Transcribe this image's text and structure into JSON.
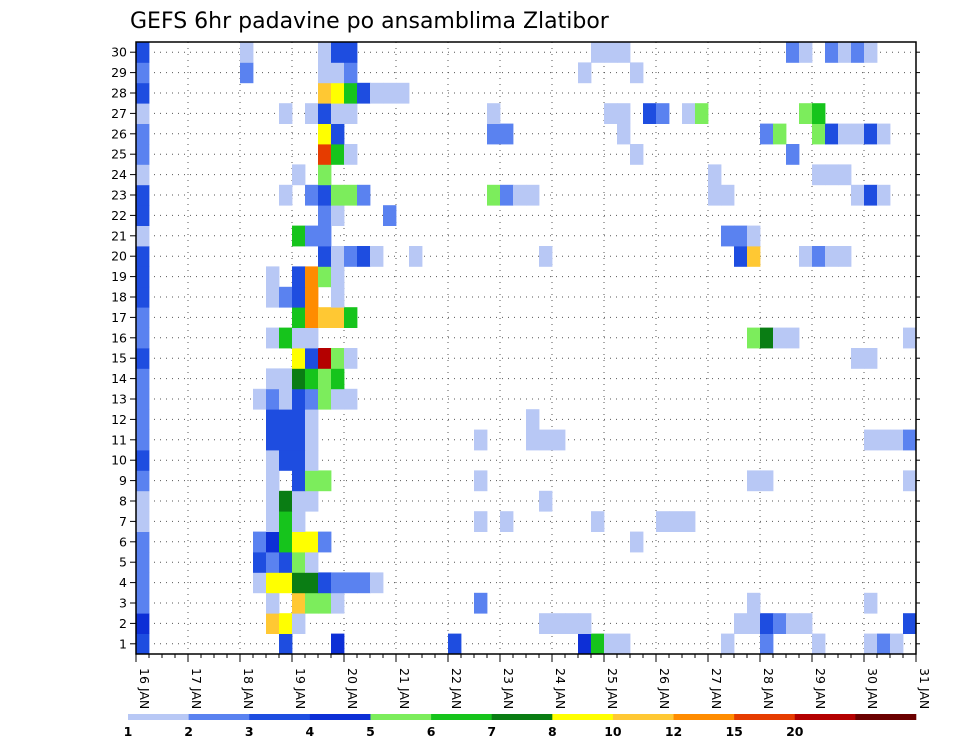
{
  "chart_data": {
    "type": "heatmap",
    "title": "GEFS 6hr padavine po ansamblima Zlatibor",
    "xlabel": "",
    "ylabel": "",
    "x_tick_labels": [
      "16 JAN",
      "17 JAN",
      "18 JAN",
      "19 JAN",
      "20 JAN",
      "21 JAN",
      "22 JAN",
      "23 JAN",
      "24 JAN",
      "25 JAN",
      "26 JAN",
      "27 JAN",
      "28 JAN",
      "29 JAN",
      "30 JAN",
      "31 JAN"
    ],
    "y_tick_labels": [
      1,
      2,
      3,
      4,
      5,
      6,
      7,
      8,
      9,
      10,
      11,
      12,
      13,
      14,
      15,
      16,
      17,
      18,
      19,
      20,
      21,
      22,
      23,
      24,
      25,
      26,
      27,
      28,
      29,
      30
    ],
    "xlim": [
      0,
      60
    ],
    "ylim": [
      0.5,
      30.5
    ],
    "time_step_hours": 6,
    "grid": true,
    "colorbar": {
      "labels": [
        "1",
        "2",
        "3",
        "4",
        "5",
        "6",
        "7",
        "8",
        "10",
        "12",
        "15",
        "20"
      ],
      "colors": [
        "#b8c8f5",
        "#5a82f0",
        "#1e4de0",
        "#0d2fd6",
        "#7ced5c",
        "#16c41c",
        "#0a7d14",
        "#ffff00",
        "#ffc833",
        "#ff8c00",
        "#e63c00",
        "#b40000",
        "#6b0000"
      ]
    },
    "values_note": "level index per cell: 1..13 = colorbar segment",
    "cells": [
      [
        1,
        0,
        3
      ],
      [
        1,
        11,
        3
      ],
      [
        1,
        15,
        4
      ],
      [
        1,
        24,
        3
      ],
      [
        1,
        34,
        4
      ],
      [
        1,
        35,
        6
      ],
      [
        1,
        36,
        1
      ],
      [
        1,
        37,
        1
      ],
      [
        1,
        45,
        1
      ],
      [
        1,
        48,
        2
      ],
      [
        1,
        52,
        1
      ],
      [
        1,
        56,
        1
      ],
      [
        1,
        57,
        2
      ],
      [
        1,
        58,
        1
      ],
      [
        2,
        0,
        4
      ],
      [
        2,
        10,
        9
      ],
      [
        2,
        11,
        8
      ],
      [
        2,
        12,
        1
      ],
      [
        2,
        31,
        1
      ],
      [
        2,
        32,
        1
      ],
      [
        2,
        33,
        1
      ],
      [
        2,
        34,
        1
      ],
      [
        2,
        46,
        1
      ],
      [
        2,
        47,
        1
      ],
      [
        2,
        48,
        3
      ],
      [
        2,
        49,
        2
      ],
      [
        2,
        50,
        1
      ],
      [
        2,
        51,
        1
      ],
      [
        2,
        59,
        3
      ],
      [
        3,
        0,
        2
      ],
      [
        3,
        10,
        1
      ],
      [
        3,
        12,
        9
      ],
      [
        3,
        13,
        5
      ],
      [
        3,
        14,
        5
      ],
      [
        3,
        15,
        1
      ],
      [
        3,
        26,
        2
      ],
      [
        3,
        47,
        1
      ],
      [
        3,
        56,
        1
      ],
      [
        4,
        0,
        2
      ],
      [
        4,
        9,
        1
      ],
      [
        4,
        10,
        8
      ],
      [
        4,
        11,
        8
      ],
      [
        4,
        12,
        7
      ],
      [
        4,
        13,
        7
      ],
      [
        4,
        14,
        3
      ],
      [
        4,
        15,
        2
      ],
      [
        4,
        16,
        2
      ],
      [
        4,
        17,
        2
      ],
      [
        4,
        18,
        1
      ],
      [
        5,
        0,
        2
      ],
      [
        5,
        9,
        3
      ],
      [
        5,
        10,
        2
      ],
      [
        5,
        11,
        3
      ],
      [
        5,
        12,
        5
      ],
      [
        5,
        13,
        1
      ],
      [
        6,
        0,
        2
      ],
      [
        6,
        9,
        2
      ],
      [
        6,
        10,
        4
      ],
      [
        6,
        11,
        6
      ],
      [
        6,
        12,
        8
      ],
      [
        6,
        13,
        8
      ],
      [
        6,
        14,
        2
      ],
      [
        6,
        38,
        1
      ],
      [
        7,
        0,
        1
      ],
      [
        7,
        10,
        1
      ],
      [
        7,
        11,
        6
      ],
      [
        7,
        12,
        1
      ],
      [
        7,
        26,
        1
      ],
      [
        7,
        28,
        1
      ],
      [
        7,
        35,
        1
      ],
      [
        7,
        40,
        1
      ],
      [
        7,
        41,
        1
      ],
      [
        7,
        42,
        1
      ],
      [
        8,
        0,
        1
      ],
      [
        8,
        10,
        1
      ],
      [
        8,
        11,
        7
      ],
      [
        8,
        12,
        1
      ],
      [
        8,
        13,
        1
      ],
      [
        8,
        31,
        1
      ],
      [
        9,
        0,
        2
      ],
      [
        9,
        10,
        1
      ],
      [
        9,
        12,
        3
      ],
      [
        9,
        13,
        5
      ],
      [
        9,
        14,
        5
      ],
      [
        9,
        26,
        1
      ],
      [
        9,
        47,
        1
      ],
      [
        9,
        48,
        1
      ],
      [
        9,
        59,
        1
      ],
      [
        10,
        0,
        3
      ],
      [
        10,
        10,
        1
      ],
      [
        10,
        11,
        3
      ],
      [
        10,
        12,
        3
      ],
      [
        10,
        13,
        1
      ],
      [
        11,
        0,
        2
      ],
      [
        11,
        10,
        3
      ],
      [
        11,
        11,
        3
      ],
      [
        11,
        12,
        3
      ],
      [
        11,
        13,
        1
      ],
      [
        11,
        26,
        1
      ],
      [
        11,
        30,
        1
      ],
      [
        11,
        31,
        1
      ],
      [
        11,
        32,
        1
      ],
      [
        11,
        56,
        1
      ],
      [
        11,
        57,
        1
      ],
      [
        11,
        58,
        1
      ],
      [
        11,
        59,
        2
      ],
      [
        12,
        0,
        2
      ],
      [
        12,
        10,
        3
      ],
      [
        12,
        11,
        3
      ],
      [
        12,
        12,
        3
      ],
      [
        12,
        13,
        1
      ],
      [
        12,
        30,
        1
      ],
      [
        13,
        0,
        2
      ],
      [
        13,
        9,
        1
      ],
      [
        13,
        10,
        2
      ],
      [
        13,
        11,
        1
      ],
      [
        13,
        12,
        3
      ],
      [
        13,
        13,
        2
      ],
      [
        13,
        14,
        5
      ],
      [
        13,
        15,
        1
      ],
      [
        13,
        16,
        1
      ],
      [
        14,
        0,
        2
      ],
      [
        14,
        10,
        1
      ],
      [
        14,
        11,
        1
      ],
      [
        14,
        12,
        7
      ],
      [
        14,
        13,
        6
      ],
      [
        14,
        14,
        5
      ],
      [
        14,
        15,
        6
      ],
      [
        15,
        0,
        3
      ],
      [
        15,
        12,
        8
      ],
      [
        15,
        13,
        3
      ],
      [
        15,
        14,
        12
      ],
      [
        15,
        15,
        5
      ],
      [
        15,
        16,
        1
      ],
      [
        15,
        55,
        1
      ],
      [
        15,
        56,
        1
      ],
      [
        16,
        0,
        2
      ],
      [
        16,
        10,
        1
      ],
      [
        16,
        11,
        6
      ],
      [
        16,
        12,
        1
      ],
      [
        16,
        13,
        1
      ],
      [
        16,
        47,
        5
      ],
      [
        16,
        48,
        7
      ],
      [
        16,
        49,
        1
      ],
      [
        16,
        50,
        1
      ],
      [
        16,
        59,
        1
      ],
      [
        17,
        0,
        2
      ],
      [
        17,
        12,
        6
      ],
      [
        17,
        13,
        10
      ],
      [
        17,
        14,
        9
      ],
      [
        17,
        15,
        9
      ],
      [
        17,
        16,
        6
      ],
      [
        18,
        0,
        3
      ],
      [
        18,
        10,
        1
      ],
      [
        18,
        11,
        2
      ],
      [
        18,
        12,
        3
      ],
      [
        18,
        13,
        10
      ],
      [
        18,
        15,
        1
      ],
      [
        19,
        0,
        3
      ],
      [
        19,
        10,
        1
      ],
      [
        19,
        12,
        3
      ],
      [
        19,
        13,
        10
      ],
      [
        19,
        14,
        5
      ],
      [
        19,
        15,
        1
      ],
      [
        20,
        0,
        3
      ],
      [
        20,
        14,
        3
      ],
      [
        20,
        15,
        1
      ],
      [
        20,
        16,
        2
      ],
      [
        20,
        17,
        3
      ],
      [
        20,
        18,
        1
      ],
      [
        20,
        21,
        1
      ],
      [
        20,
        31,
        1
      ],
      [
        20,
        46,
        3
      ],
      [
        20,
        47,
        9
      ],
      [
        20,
        51,
        1
      ],
      [
        20,
        52,
        2
      ],
      [
        20,
        53,
        1
      ],
      [
        20,
        54,
        1
      ],
      [
        21,
        0,
        1
      ],
      [
        21,
        12,
        6
      ],
      [
        21,
        13,
        2
      ],
      [
        21,
        14,
        2
      ],
      [
        21,
        45,
        2
      ],
      [
        21,
        46,
        2
      ],
      [
        21,
        47,
        1
      ],
      [
        22,
        0,
        3
      ],
      [
        22,
        14,
        2
      ],
      [
        22,
        15,
        1
      ],
      [
        22,
        19,
        2
      ],
      [
        23,
        0,
        3
      ],
      [
        23,
        11,
        1
      ],
      [
        23,
        13,
        2
      ],
      [
        23,
        14,
        3
      ],
      [
        23,
        15,
        5
      ],
      [
        23,
        16,
        5
      ],
      [
        23,
        17,
        2
      ],
      [
        23,
        27,
        5
      ],
      [
        23,
        28,
        2
      ],
      [
        23,
        29,
        1
      ],
      [
        23,
        30,
        1
      ],
      [
        23,
        44,
        1
      ],
      [
        23,
        45,
        1
      ],
      [
        23,
        55,
        1
      ],
      [
        23,
        56,
        3
      ],
      [
        23,
        57,
        1
      ],
      [
        24,
        0,
        1
      ],
      [
        24,
        12,
        1
      ],
      [
        24,
        14,
        5
      ],
      [
        24,
        44,
        1
      ],
      [
        24,
        52,
        1
      ],
      [
        24,
        53,
        1
      ],
      [
        24,
        54,
        1
      ],
      [
        25,
        0,
        2
      ],
      [
        25,
        14,
        11
      ],
      [
        25,
        15,
        6
      ],
      [
        25,
        16,
        1
      ],
      [
        25,
        38,
        1
      ],
      [
        25,
        50,
        2
      ],
      [
        26,
        0,
        2
      ],
      [
        26,
        14,
        8
      ],
      [
        26,
        15,
        3
      ],
      [
        26,
        27,
        2
      ],
      [
        26,
        28,
        2
      ],
      [
        26,
        37,
        1
      ],
      [
        26,
        48,
        2
      ],
      [
        26,
        49,
        5
      ],
      [
        26,
        52,
        5
      ],
      [
        26,
        53,
        3
      ],
      [
        26,
        54,
        1
      ],
      [
        26,
        55,
        1
      ],
      [
        26,
        56,
        3
      ],
      [
        26,
        57,
        1
      ],
      [
        27,
        0,
        1
      ],
      [
        27,
        11,
        1
      ],
      [
        27,
        13,
        1
      ],
      [
        27,
        14,
        3
      ],
      [
        27,
        15,
        1
      ],
      [
        27,
        16,
        1
      ],
      [
        27,
        27,
        1
      ],
      [
        27,
        36,
        1
      ],
      [
        27,
        37,
        1
      ],
      [
        27,
        39,
        3
      ],
      [
        27,
        40,
        2
      ],
      [
        27,
        42,
        1
      ],
      [
        27,
        43,
        5
      ],
      [
        27,
        51,
        5
      ],
      [
        27,
        52,
        6
      ],
      [
        28,
        0,
        3
      ],
      [
        28,
        14,
        9
      ],
      [
        28,
        15,
        8
      ],
      [
        28,
        16,
        6
      ],
      [
        28,
        17,
        3
      ],
      [
        28,
        18,
        1
      ],
      [
        28,
        19,
        1
      ],
      [
        28,
        20,
        1
      ],
      [
        29,
        0,
        2
      ],
      [
        29,
        8,
        2
      ],
      [
        29,
        14,
        1
      ],
      [
        29,
        15,
        1
      ],
      [
        29,
        16,
        2
      ],
      [
        29,
        34,
        1
      ],
      [
        29,
        38,
        1
      ],
      [
        30,
        0,
        3
      ],
      [
        30,
        8,
        1
      ],
      [
        30,
        14,
        1
      ],
      [
        30,
        15,
        3
      ],
      [
        30,
        16,
        3
      ],
      [
        30,
        35,
        1
      ],
      [
        30,
        36,
        1
      ],
      [
        30,
        37,
        1
      ],
      [
        30,
        50,
        2
      ],
      [
        30,
        51,
        1
      ],
      [
        30,
        53,
        2
      ],
      [
        30,
        54,
        1
      ],
      [
        30,
        55,
        2
      ],
      [
        30,
        56,
        1
      ]
    ]
  }
}
